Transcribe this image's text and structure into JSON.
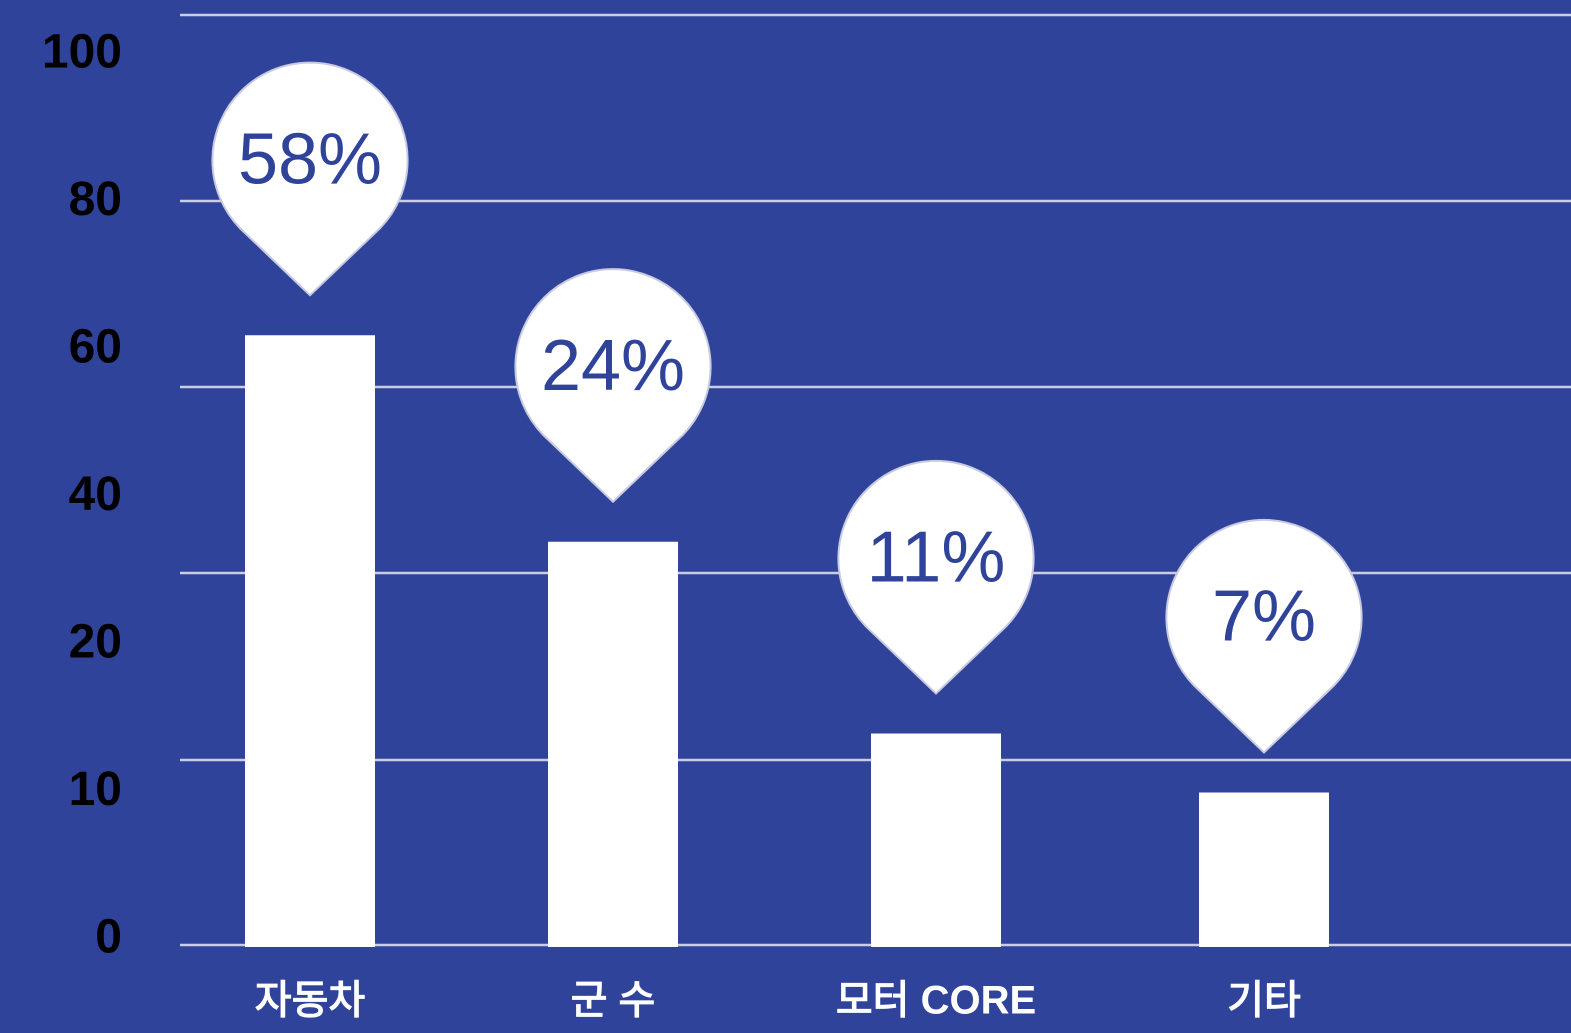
{
  "chart_data": {
    "type": "bar",
    "categories": [
      "자동차",
      "군 수",
      "모터 CORE",
      "기타"
    ],
    "values": [
      62,
      34,
      14,
      10
    ],
    "callouts": [
      "58%",
      "24%",
      "11%",
      "7%"
    ],
    "color": "#ffffff",
    "ylim": [
      0,
      100
    ],
    "yticks": [
      0,
      10,
      20,
      40,
      60,
      80,
      100
    ]
  }
}
